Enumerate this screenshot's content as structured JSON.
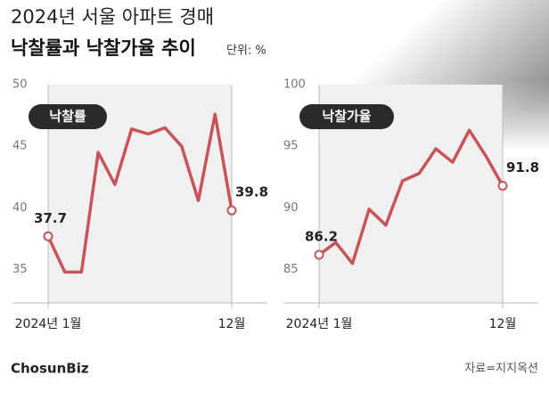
{
  "header": {
    "title": "2024년 서울 아파트 경매",
    "subtitle": "낙찰률과 낙찰가율 추이",
    "unit": "단위: %"
  },
  "chart_data": [
    {
      "type": "line",
      "title": "낙찰률",
      "categories": [
        "2024년 1월",
        null,
        null,
        null,
        null,
        null,
        null,
        null,
        null,
        null,
        null,
        "12월"
      ],
      "values": [
        37.7,
        34.8,
        34.8,
        44.5,
        41.9,
        46.4,
        46.0,
        46.5,
        45.0,
        40.6,
        47.6,
        39.8
      ],
      "color": "#c8545a",
      "ylim": [
        32.3,
        50
      ],
      "yticks": [
        35,
        40,
        45,
        50
      ]
    },
    {
      "type": "line",
      "title": "낙찰가율",
      "categories": [
        "2024년 1월",
        null,
        null,
        null,
        null,
        null,
        null,
        null,
        null,
        null,
        null,
        "12월"
      ],
      "values": [
        86.2,
        87.2,
        85.5,
        89.9,
        88.6,
        92.2,
        92.8,
        94.8,
        93.7,
        96.3,
        94.2,
        91.8
      ],
      "color": "#c8545a",
      "ylim": [
        82.3,
        100
      ],
      "yticks": [
        85,
        90,
        95,
        100
      ]
    }
  ],
  "footer": {
    "logo": "ChosunBiz",
    "source": "자료=지지옥션"
  }
}
